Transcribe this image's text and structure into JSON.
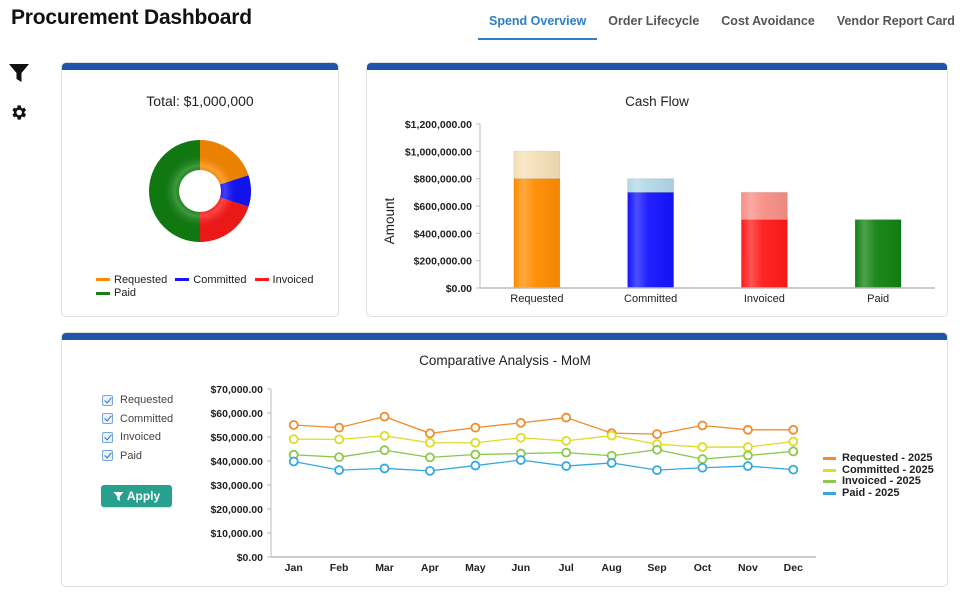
{
  "header": {
    "title": "Procurement Dashboard"
  },
  "tabs": [
    {
      "label": "Spend Overview",
      "active": true
    },
    {
      "label": "Order Lifecycle",
      "active": false
    },
    {
      "label": "Cost Avoidance",
      "active": false
    },
    {
      "label": "Vendor Report Card",
      "active": false
    }
  ],
  "sidebar": {
    "icons": [
      "filter-icon",
      "gear-icon"
    ]
  },
  "colors": {
    "card_header": "#1f55a6",
    "accent_tab": "#2b7fc9",
    "apply_button": "#27a08d",
    "requested": "#ff8c00",
    "committed": "#1414ff",
    "invoiced": "#ff1a1a",
    "paid": "#128212"
  },
  "donut": {
    "total_label": "Total: $1,000,000",
    "legend": [
      {
        "label": "Requested",
        "color": "#ff8c00"
      },
      {
        "label": "Committed",
        "color": "#1414ff"
      },
      {
        "label": "Invoiced",
        "color": "#ff1a1a"
      },
      {
        "label": "Paid",
        "color": "#128212"
      }
    ]
  },
  "filters": {
    "items": [
      {
        "label": "Requested",
        "checked": true
      },
      {
        "label": "Committed",
        "checked": true
      },
      {
        "label": "Invoiced",
        "checked": true
      },
      {
        "label": "Paid",
        "checked": true
      }
    ],
    "apply_label": "Apply"
  },
  "line_legend": [
    {
      "label": "Requested - 2025",
      "color": "#f08c2e"
    },
    {
      "label": "Committed - 2025",
      "color": "#dcdc2a"
    },
    {
      "label": "Invoiced - 2025",
      "color": "#8cc84b"
    },
    {
      "label": "Paid - 2025",
      "color": "#35a8e0"
    }
  ],
  "chart_data": [
    {
      "type": "pie",
      "variant": "donut",
      "title": "Total: $1,000,000",
      "categories": [
        "Requested",
        "Committed",
        "Invoiced",
        "Paid"
      ],
      "values": [
        200000,
        100000,
        200000,
        500000
      ],
      "colors": [
        "#ff8c00",
        "#1414ff",
        "#ff1a1a",
        "#128212"
      ],
      "legend": "bottom"
    },
    {
      "type": "bar",
      "stacked": true,
      "title": "Cash Flow",
      "xlabel": "",
      "ylabel": "Amount",
      "categories": [
        "Requested",
        "Committed",
        "Invoiced",
        "Paid"
      ],
      "series": [
        {
          "name": "Base",
          "values": [
            800000,
            700000,
            500000,
            500000
          ],
          "colors": [
            "#ff8c00",
            "#1414ff",
            "#ff1a1a",
            "#128212"
          ]
        },
        {
          "name": "Stage",
          "values": [
            200000,
            100000,
            200000,
            0
          ],
          "colors": [
            "#f5dfb8",
            "#b3d8e8",
            "#f78f86",
            "#128212"
          ]
        }
      ],
      "ylim": [
        0,
        1200000
      ],
      "yticks": [
        0,
        200000,
        400000,
        600000,
        800000,
        1000000,
        1200000
      ],
      "ytick_labels": [
        "$0.00",
        "$200,000.00",
        "$400,000.00",
        "$600,000.00",
        "$800,000.00",
        "$1,000,000.00",
        "$1,200,000.00"
      ],
      "grid": false
    },
    {
      "type": "line",
      "title": "Comparative Analysis - MoM",
      "xlabel": "",
      "ylabel": "",
      "categories": [
        "Jan",
        "Feb",
        "Mar",
        "Apr",
        "May",
        "Jun",
        "Jul",
        "Aug",
        "Sep",
        "Oct",
        "Nov",
        "Dec"
      ],
      "series": [
        {
          "name": "Requested - 2025",
          "color": "#f08c2e",
          "values": [
            55000,
            53900,
            58500,
            51500,
            53900,
            55900,
            58100,
            51600,
            51200,
            54800,
            53000,
            53000
          ]
        },
        {
          "name": "Committed - 2025",
          "color": "#dcdc2a",
          "values": [
            49100,
            49000,
            50500,
            47600,
            47600,
            49700,
            48400,
            50600,
            47000,
            45800,
            45800,
            48100
          ]
        },
        {
          "name": "Invoiced - 2025",
          "color": "#8cc84b",
          "values": [
            42600,
            41600,
            44500,
            41500,
            42700,
            43100,
            43500,
            42200,
            44700,
            40800,
            42300,
            44000
          ]
        },
        {
          "name": "Paid - 2025",
          "color": "#35a8e0",
          "values": [
            39800,
            36200,
            36900,
            35900,
            38100,
            40400,
            37900,
            39200,
            36200,
            37200,
            37900,
            36400
          ]
        }
      ],
      "ylim": [
        0,
        70000
      ],
      "yticks": [
        0,
        10000,
        20000,
        30000,
        40000,
        50000,
        60000,
        70000
      ],
      "ytick_labels": [
        "$0.00",
        "$10,000.00",
        "$20,000.00",
        "$30,000.00",
        "$40,000.00",
        "$50,000.00",
        "$60,000.00",
        "$70,000.00"
      ],
      "grid": false,
      "legend": "right"
    }
  ]
}
